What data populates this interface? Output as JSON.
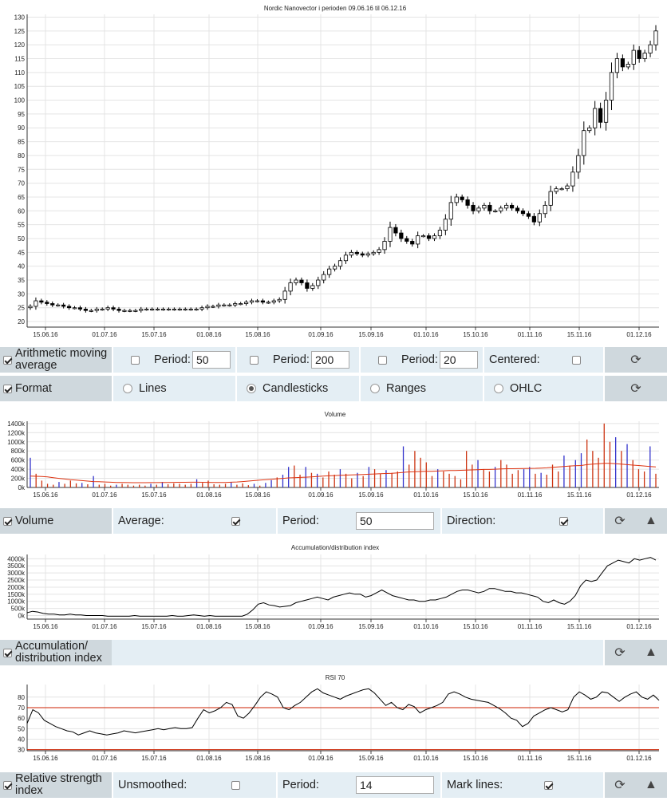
{
  "chart_data": [
    {
      "type": "candlestick",
      "title": "Nordic Nanovector i perioden 09.06.16 til 06.12.16",
      "ylim": [
        18,
        131
      ],
      "yticks": [
        20,
        25,
        30,
        35,
        40,
        45,
        50,
        55,
        60,
        65,
        70,
        75,
        80,
        85,
        90,
        95,
        100,
        105,
        110,
        115,
        120,
        125,
        130
      ],
      "xticks": [
        "15.06.16",
        "01.07.16",
        "15.07.16",
        "01.08.16",
        "15.08.16",
        "01.09.16",
        "15.09.16",
        "01.10.16",
        "15.10.16",
        "01.11.16",
        "15.11.16",
        "01.12.16"
      ],
      "grid": true,
      "series": [
        {
          "values": [
            25.5,
            27.5,
            27,
            26.5,
            26,
            26,
            25.5,
            25,
            25,
            24.5,
            24,
            24,
            24.5,
            24.5,
            25,
            24.5,
            24,
            24,
            24,
            24,
            24.5,
            24.5,
            24.5,
            24.5,
            24.5,
            24.5,
            24.5,
            24.5,
            24.5,
            24.5,
            24.5,
            25,
            25.5,
            25.5,
            26,
            26,
            26,
            26.5,
            26.5,
            27,
            27.5,
            27.5,
            27,
            27,
            27.5,
            28,
            31,
            34,
            35,
            34,
            32,
            33,
            35,
            37,
            39,
            40,
            42,
            44,
            45,
            44.5,
            44,
            44.5,
            45,
            46,
            49,
            54,
            52,
            50,
            49,
            48,
            51,
            51,
            50,
            51,
            53,
            57,
            63,
            65,
            64,
            62,
            60,
            61,
            62,
            60,
            60,
            61,
            62,
            61,
            60,
            59,
            58,
            56,
            59,
            62,
            67,
            68,
            68,
            69,
            74,
            80,
            89,
            90,
            97,
            92,
            100,
            110,
            115,
            112,
            113,
            118,
            115,
            117,
            120,
            125
          ]
        }
      ]
    },
    {
      "type": "bar",
      "title": "Volume",
      "ylim": [
        0,
        1450
      ],
      "yticks": [
        "0k",
        "200k",
        "400k",
        "600k",
        "800k",
        "1000k",
        "1200k",
        "1400k"
      ],
      "xticks": [
        "15.06.16",
        "01.07.16",
        "15.07.16",
        "01.08.16",
        "15.08.16",
        "01.09.16",
        "15.09.16",
        "01.10.16",
        "15.10.16",
        "01.11.16",
        "15.11.16",
        "01.12.16"
      ],
      "values_k": [
        650,
        300,
        150,
        80,
        60,
        120,
        80,
        150,
        90,
        100,
        70,
        250,
        60,
        80,
        40,
        60,
        80,
        60,
        40,
        60,
        40,
        80,
        60,
        120,
        70,
        90,
        80,
        60,
        80,
        180,
        100,
        150,
        70,
        60,
        80,
        120,
        60,
        90,
        50,
        80,
        40,
        100,
        160,
        220,
        280,
        450,
        480,
        280,
        450,
        320,
        300,
        220,
        350,
        280,
        400,
        300,
        200,
        320,
        250,
        450,
        400,
        300,
        380,
        320,
        350,
        900,
        500,
        800,
        650,
        550,
        250,
        400,
        350,
        300,
        250,
        180,
        800,
        500,
        600,
        400,
        350,
        450,
        600,
        500,
        300,
        380,
        400,
        450,
        300,
        320,
        280,
        500,
        350,
        700,
        480,
        600,
        750,
        1050,
        800,
        650,
        1400,
        1000,
        1100,
        800,
        950,
        600,
        400,
        350,
        900,
        300
      ],
      "average_k": [
        250,
        245,
        240,
        230,
        215,
        200,
        185,
        170,
        160,
        150,
        140,
        130,
        125,
        120,
        115,
        110,
        108,
        106,
        105,
        105,
        105,
        106,
        107,
        108,
        110,
        112,
        113,
        114,
        115,
        115,
        114,
        112,
        110,
        108,
        110,
        115,
        120,
        130,
        140,
        150,
        160,
        170,
        180,
        190,
        200,
        210,
        215,
        220,
        225,
        230,
        240,
        250,
        255,
        260,
        265,
        270,
        275,
        280,
        285,
        290,
        295,
        300,
        305,
        310,
        320,
        330,
        340,
        345,
        350,
        355,
        355,
        360,
        365,
        370,
        370,
        375,
        380,
        385,
        390,
        395,
        395,
        400,
        405,
        410,
        410,
        412,
        415,
        418,
        420,
        425,
        430,
        440,
        450,
        460,
        470,
        475,
        480,
        500,
        510,
        520,
        530,
        530,
        520,
        510,
        500,
        490,
        480,
        470,
        460,
        450
      ],
      "direction_colors": {
        "up": "#3333cc",
        "down": "#cc3311"
      },
      "average_color": "#dd3311"
    },
    {
      "type": "line",
      "title": "Accumulation/distribution index",
      "ylim": [
        -250,
        4300
      ],
      "yticks": [
        "0k",
        "500k",
        "1000k",
        "1500k",
        "2000k",
        "2500k",
        "3000k",
        "3500k",
        "4000k"
      ],
      "xticks": [
        "15.06.16",
        "01.07.16",
        "15.07.16",
        "01.08.16",
        "15.08.16",
        "01.09.16",
        "15.09.16",
        "01.10.16",
        "15.10.16",
        "01.11.16",
        "15.11.16",
        "01.12.16"
      ],
      "values_k": [
        200,
        300,
        250,
        150,
        100,
        100,
        50,
        50,
        100,
        50,
        50,
        0,
        0,
        0,
        0,
        -50,
        -50,
        -50,
        -50,
        -50,
        0,
        -50,
        -50,
        -50,
        -50,
        -50,
        -50,
        0,
        -50,
        -50,
        0,
        50,
        0,
        -50,
        0,
        -50,
        -50,
        -50,
        -50,
        -50,
        -50,
        100,
        400,
        800,
        900,
        750,
        700,
        600,
        650,
        700,
        900,
        1000,
        1100,
        1200,
        1300,
        1200,
        1100,
        1300,
        1400,
        1500,
        1600,
        1500,
        1500,
        1300,
        1400,
        1600,
        1800,
        1600,
        1400,
        1300,
        1200,
        1100,
        1100,
        1000,
        1000,
        1100,
        1100,
        1200,
        1300,
        1500,
        1700,
        1800,
        1800,
        1700,
        1600,
        1700,
        1900,
        1900,
        1800,
        1700,
        1700,
        1600,
        1600,
        1500,
        1400,
        1300,
        1000,
        900,
        1100,
        900,
        800,
        1000,
        1400,
        2100,
        2500,
        2400,
        2500,
        3000,
        3500,
        3700,
        3900,
        3800,
        3700,
        4000,
        3900,
        4000,
        4100,
        3900
      ],
      "line_color": "#000000"
    },
    {
      "type": "line",
      "title": "RSI 70",
      "ylim": [
        29,
        92
      ],
      "yticks": [
        30,
        40,
        50,
        60,
        70,
        80
      ],
      "xticks": [
        "15.06.16",
        "01.07.16",
        "15.07.16",
        "01.08.16",
        "15.08.16",
        "01.09.16",
        "15.09.16",
        "01.10.16",
        "15.10.16",
        "01.11.16",
        "15.11.16",
        "01.12.16"
      ],
      "mark_lines": [
        70,
        30
      ],
      "values": [
        55,
        68,
        65,
        58,
        55,
        52,
        50,
        48,
        47,
        44,
        46,
        48,
        46,
        45,
        44,
        45,
        46,
        48,
        47,
        46,
        47,
        48,
        49,
        50,
        49,
        50,
        51,
        50,
        50,
        51,
        60,
        68,
        65,
        67,
        70,
        75,
        73,
        62,
        60,
        65,
        72,
        80,
        85,
        83,
        80,
        70,
        68,
        72,
        75,
        80,
        85,
        88,
        84,
        82,
        80,
        78,
        81,
        83,
        85,
        87,
        88,
        84,
        78,
        72,
        75,
        70,
        68,
        73,
        71,
        65,
        68,
        70,
        72,
        75,
        83,
        85,
        83,
        80,
        78,
        77,
        76,
        75,
        72,
        69,
        65,
        60,
        58,
        52,
        55,
        62,
        65,
        68,
        70,
        68,
        66,
        68,
        80,
        85,
        82,
        78,
        80,
        85,
        84,
        80,
        76,
        80,
        83,
        85,
        80,
        78,
        82,
        77
      ]
    }
  ],
  "controls": {
    "sma": {
      "label": "Arithmetic moving average",
      "period_label": "Period:",
      "period1": "50",
      "period2": "200",
      "period3": "20",
      "centered_label": "Centered:"
    },
    "format": {
      "label": "Format",
      "options": [
        "Lines",
        "Candlesticks",
        "Ranges",
        "OHLC"
      ],
      "selected": "Candlesticks"
    },
    "volume": {
      "label": "Volume",
      "average_label": "Average:",
      "period_label": "Period:",
      "period": "50",
      "direction_label": "Direction:"
    },
    "ad": {
      "label": "Accumulation/ distribution index"
    },
    "rsi": {
      "label": "Relative strength index",
      "unsmoothed_label": "Unsmoothed:",
      "period_label": "Period:",
      "period": "14",
      "mark_lines_label": "Mark lines:"
    }
  }
}
